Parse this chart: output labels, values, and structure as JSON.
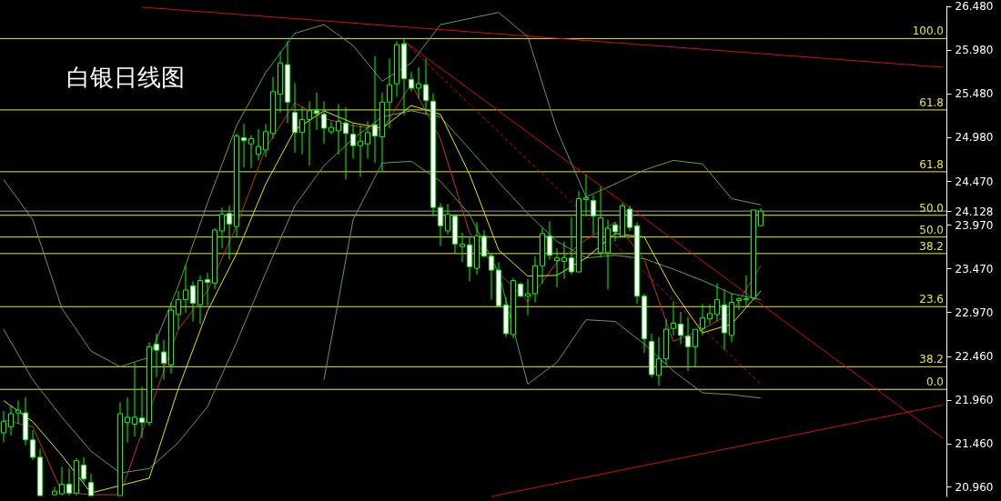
{
  "chart_data": {
    "type": "candlestick",
    "title": "白银日线图",
    "color": "#00ff00",
    "categories": [
      null,
      null,
      null,
      null,
      null,
      null,
      null,
      null,
      null,
      null,
      null,
      null,
      null,
      null,
      null,
      null,
      null,
      null,
      null,
      null,
      null,
      null,
      null,
      null,
      null,
      null,
      null,
      null,
      null,
      null,
      null,
      null,
      null,
      null,
      null,
      null,
      null,
      null,
      null,
      null,
      null,
      null,
      null,
      null,
      null,
      null,
      null,
      null,
      null,
      null,
      null,
      null,
      null,
      null,
      null,
      null,
      null,
      null,
      null,
      null,
      null,
      null,
      null,
      null,
      null,
      null,
      null,
      null,
      null,
      null,
      null,
      null,
      null,
      null,
      null,
      null,
      null,
      null,
      null,
      null,
      null,
      null,
      null,
      null,
      null,
      null,
      null,
      null,
      null,
      null,
      null,
      null,
      null,
      null,
      null,
      null,
      null,
      null,
      null,
      null,
      null,
      null,
      null,
      null,
      null,
      null,
      null,
      null,
      null,
      null,
      null,
      null,
      null,
      null,
      null,
      null,
      null,
      null,
      null,
      null,
      null,
      null,
      null,
      null,
      null,
      null,
      null,
      null,
      null,
      null
    ],
    "ohlc": [
      [
        21.58,
        21.83,
        21.47,
        21.71
      ],
      [
        21.65,
        21.9,
        21.55,
        21.8
      ],
      [
        21.81,
        21.95,
        21.68,
        21.84
      ],
      [
        21.81,
        21.99,
        21.44,
        21.5
      ],
      [
        21.5,
        21.61,
        21.27,
        21.3
      ],
      [
        21.3,
        21.4,
        20.86,
        20.86
      ],
      null,
      [
        20.87,
        20.96,
        20.86,
        20.91
      ],
      [
        20.88,
        21.19,
        20.86,
        20.99
      ],
      [
        20.99,
        21.17,
        20.86,
        20.89
      ],
      [
        20.89,
        21.29,
        20.86,
        21.26
      ],
      [
        21.21,
        21.3,
        21.01,
        21.05
      ],
      [
        21.01,
        21.11,
        20.86,
        20.86
      ],
      null,
      null,
      null,
      [
        20.86,
        21.93,
        20.86,
        21.8
      ],
      [
        21.7,
        21.99,
        21.47,
        21.76
      ],
      [
        21.68,
        22.39,
        21.54,
        21.76
      ],
      [
        21.75,
        22.11,
        21.52,
        21.7
      ],
      [
        21.7,
        22.62,
        21.66,
        22.57
      ],
      [
        22.6,
        22.72,
        22.22,
        22.53
      ],
      [
        22.51,
        22.65,
        22.19,
        22.38
      ],
      [
        22.36,
        23.08,
        22.26,
        22.99
      ],
      [
        22.94,
        23.21,
        22.77,
        23.11
      ],
      [
        23.11,
        23.5,
        22.96,
        23.22
      ],
      [
        23.27,
        23.32,
        22.86,
        23.07
      ],
      [
        23.05,
        23.39,
        22.83,
        23.33
      ],
      [
        23.34,
        23.42,
        23.04,
        23.31
      ],
      [
        23.3,
        23.93,
        23.23,
        23.91
      ],
      [
        23.9,
        24.17,
        23.7,
        24.09
      ],
      [
        24.1,
        24.19,
        23.57,
        23.98
      ],
      [
        23.95,
        25.02,
        23.83,
        24.99
      ],
      [
        24.97,
        25.13,
        24.63,
        24.94
      ],
      [
        24.9,
        25.0,
        24.62,
        24.96
      ],
      [
        24.78,
        25.07,
        24.71,
        24.87
      ],
      [
        24.83,
        25.13,
        24.75,
        25.04
      ],
      [
        25.02,
        25.67,
        24.96,
        25.5
      ],
      [
        25.47,
        25.96,
        25.26,
        25.83
      ],
      [
        25.81,
        26.08,
        25.14,
        25.38
      ],
      [
        25.26,
        25.6,
        24.8,
        25.03
      ],
      [
        25.03,
        25.32,
        24.78,
        25.18
      ],
      [
        25.18,
        25.39,
        24.65,
        25.28
      ],
      [
        25.28,
        25.49,
        25.06,
        25.25
      ],
      [
        25.24,
        25.39,
        24.9,
        25.08
      ],
      [
        25.04,
        25.16,
        25.01,
        25.09
      ],
      [
        25.05,
        25.36,
        24.78,
        25.16
      ],
      [
        25.14,
        25.32,
        24.49,
        25.02
      ],
      [
        25.01,
        25.13,
        24.73,
        24.88
      ],
      [
        24.88,
        25.11,
        24.52,
        24.93
      ],
      [
        24.9,
        25.16,
        24.73,
        25.03
      ],
      [
        25.12,
        25.91,
        24.68,
        24.99
      ],
      [
        24.98,
        25.49,
        24.58,
        25.38
      ],
      [
        25.38,
        25.88,
        25.08,
        25.58
      ],
      [
        25.59,
        26.08,
        25.44,
        26.04
      ],
      [
        26.05,
        26.11,
        25.23,
        25.65
      ],
      [
        25.64,
        25.73,
        25.5,
        25.54
      ],
      [
        25.54,
        25.78,
        25.42,
        25.59
      ],
      [
        25.58,
        25.88,
        25.23,
        25.4
      ],
      [
        25.39,
        25.48,
        24.07,
        24.17
      ],
      [
        24.17,
        24.22,
        23.73,
        23.96
      ],
      [
        23.9,
        24.21,
        23.86,
        24.09
      ],
      [
        24.07,
        24.09,
        23.64,
        23.75
      ],
      [
        23.72,
        23.88,
        23.54,
        23.75
      ],
      [
        23.74,
        23.83,
        23.32,
        23.49
      ],
      [
        23.47,
        24.0,
        23.4,
        23.84
      ],
      [
        23.84,
        23.91,
        23.6,
        23.61
      ],
      [
        23.61,
        23.64,
        23.11,
        23.45
      ],
      [
        23.45,
        23.54,
        23.03,
        23.04
      ],
      [
        23.05,
        23.14,
        22.68,
        22.72
      ],
      [
        22.71,
        23.36,
        22.67,
        23.33
      ],
      [
        23.29,
        23.31,
        23.14,
        23.15
      ],
      [
        23.15,
        23.35,
        22.93,
        23.18
      ],
      [
        23.18,
        23.61,
        23.08,
        23.5
      ],
      [
        23.5,
        23.93,
        23.29,
        23.87
      ],
      [
        23.84,
        24.01,
        23.57,
        23.62
      ],
      [
        23.56,
        23.7,
        23.25,
        23.59
      ],
      [
        23.55,
        23.78,
        23.35,
        23.59
      ],
      [
        23.59,
        24.06,
        23.4,
        23.43
      ],
      [
        23.43,
        24.36,
        23.42,
        24.27
      ],
      [
        24.26,
        24.55,
        24.07,
        24.28
      ],
      [
        24.25,
        24.31,
        23.86,
        24.07
      ],
      [
        23.65,
        24.41,
        23.6,
        24.05
      ],
      [
        23.65,
        24.03,
        23.23,
        23.93
      ],
      [
        23.97,
        24.0,
        23.78,
        23.89
      ],
      [
        23.84,
        24.22,
        23.83,
        24.19
      ],
      [
        24.15,
        24.19,
        23.9,
        23.94
      ],
      [
        23.96,
        24.0,
        23.06,
        23.15
      ],
      [
        23.15,
        23.18,
        22.5,
        22.66
      ],
      [
        22.63,
        22.72,
        22.22,
        22.25
      ],
      [
        22.24,
        22.68,
        22.12,
        22.43
      ],
      [
        22.43,
        22.89,
        22.36,
        22.77
      ],
      [
        22.78,
        23.09,
        22.7,
        22.84
      ],
      [
        22.83,
        22.97,
        22.6,
        22.7
      ],
      [
        22.69,
        22.91,
        22.29,
        22.57
      ],
      [
        22.57,
        22.77,
        22.34,
        22.77
      ],
      [
        22.78,
        23.06,
        22.7,
        22.9
      ],
      [
        22.89,
        23.06,
        22.83,
        22.95
      ],
      [
        22.94,
        23.3,
        22.86,
        23.11
      ],
      [
        23.05,
        23.23,
        22.53,
        22.73
      ],
      [
        22.7,
        23.18,
        22.62,
        23.08
      ],
      [
        23.1,
        23.14,
        22.99,
        23.12
      ],
      [
        23.11,
        23.39,
        23.03,
        23.12
      ],
      [
        23.13,
        24.14,
        23.11,
        24.14
      ],
      [
        23.96,
        24.16,
        23.96,
        24.128
      ],
      null,
      null,
      null,
      null,
      null,
      null,
      null,
      null,
      null,
      null,
      null,
      null,
      null,
      null,
      null,
      null,
      null,
      null,
      null,
      null,
      null,
      null,
      null,
      null,
      null
    ],
    "series": [
      {
        "type": "line",
        "color": "#5aa05a",
        "values": [
          24.49,
          null,
          null,
          null,
          24.03,
          null,
          null,
          null,
          23.01,
          null,
          null,
          null,
          22.52,
          null,
          null,
          null,
          22.34,
          null,
          null,
          null,
          22.45,
          null,
          null,
          null,
          23.27,
          null,
          null,
          null,
          24.22,
          null,
          null,
          null,
          25.11,
          null,
          null,
          null,
          25.72,
          null,
          null,
          null,
          26.17,
          null,
          null,
          null,
          26.27,
          null,
          null,
          null,
          26.03,
          null,
          null,
          null,
          25.62,
          null,
          null,
          null,
          25.83,
          null,
          null,
          null,
          26.27,
          null,
          null,
          null,
          26.34,
          null,
          null,
          null,
          26.41,
          null,
          null,
          null,
          26.13,
          null,
          null,
          null,
          25.06,
          null,
          null,
          null,
          24.29,
          null,
          null,
          null,
          24.44,
          null,
          null,
          null,
          24.6,
          null,
          null,
          null,
          24.71,
          null,
          null,
          null,
          24.67,
          null,
          null,
          null,
          24.27,
          null,
          null,
          null,
          24.2,
          null,
          null,
          null,
          null,
          null,
          null,
          null,
          null,
          null,
          null,
          null,
          null,
          null,
          null,
          null,
          null,
          null,
          null,
          null,
          null,
          null,
          null,
          null,
          null,
          null
        ]
      },
      {
        "type": "line",
        "color": "#5aa05a",
        "values": [
          22.77,
          null,
          null,
          null,
          22.19,
          null,
          null,
          null,
          21.76,
          null,
          null,
          null,
          21.37,
          null,
          null,
          null,
          21.12,
          null,
          null,
          null,
          21.17,
          null,
          null,
          null,
          21.47,
          null,
          null,
          null,
          21.88,
          null,
          null,
          null,
          22.62,
          null,
          null,
          null,
          23.42,
          null,
          null,
          null,
          24.19,
          null,
          null,
          null,
          24.65,
          null,
          null,
          null,
          24.96,
          null,
          null,
          null,
          25.21,
          null,
          null,
          null,
          25.28,
          null,
          null,
          null,
          25.21,
          null,
          null,
          null,
          24.84,
          null,
          null,
          null,
          24.46,
          null,
          null,
          null,
          24.1,
          null,
          null,
          null,
          23.78,
          null,
          null,
          null,
          23.59,
          null,
          null,
          null,
          23.62,
          null,
          null,
          null,
          23.58,
          null,
          null,
          null,
          23.46,
          null,
          null,
          null,
          23.33,
          null,
          null,
          null,
          23.18,
          null,
          null,
          null,
          23.11,
          null,
          null,
          null,
          null,
          null,
          null,
          null,
          null,
          null,
          null,
          null,
          null,
          null,
          null,
          null,
          null,
          null,
          null,
          null,
          null,
          null,
          null,
          null,
          null,
          null
        ]
      },
      {
        "type": "line",
        "color": "#5aa05a",
        "values": [
          null,
          null,
          null,
          null,
          null,
          null,
          null,
          null,
          null,
          null,
          null,
          null,
          null,
          null,
          null,
          null,
          null,
          null,
          null,
          null,
          null,
          null,
          null,
          null,
          null,
          null,
          null,
          null,
          null,
          null,
          null,
          null,
          null,
          null,
          null,
          null,
          null,
          null,
          null,
          null,
          null,
          null,
          null,
          null,
          22.19,
          null,
          null,
          null,
          24.03,
          null,
          null,
          null,
          24.68,
          null,
          null,
          null,
          24.7,
          null,
          null,
          null,
          24.47,
          null,
          null,
          null,
          24.09,
          null,
          null,
          null,
          23.42,
          null,
          null,
          null,
          22.14,
          null,
          null,
          null,
          22.39,
          null,
          null,
          null,
          22.88,
          null,
          null,
          null,
          22.86,
          null,
          null,
          null,
          22.6,
          null,
          null,
          null,
          22.29,
          null,
          null,
          null,
          22.04,
          null,
          null,
          null,
          22.02,
          null,
          null,
          null,
          21.98,
          null,
          null,
          null,
          null,
          null,
          null,
          null,
          null,
          null,
          null,
          null,
          null,
          null,
          null,
          null,
          null,
          null,
          null,
          null,
          null,
          null,
          null,
          null,
          null,
          null
        ]
      },
      {
        "type": "line",
        "color": "#c83232",
        "values": [
          21.73,
          null,
          null,
          null,
          21.65,
          null,
          null,
          null,
          20.9,
          null,
          null,
          null,
          20.87,
          null,
          null,
          null,
          20.87,
          null,
          null,
          null,
          null,
          null,
          null,
          null,
          22.77,
          null,
          null,
          null,
          23.21,
          null,
          null,
          null,
          23.96,
          null,
          null,
          null,
          24.85,
          null,
          null,
          null,
          25.37,
          null,
          null,
          null,
          25.19,
          null,
          null,
          null,
          25.11,
          null,
          null,
          null,
          25.06,
          null,
          null,
          null,
          25.59,
          null,
          null,
          null,
          24.96,
          null,
          null,
          null,
          23.88,
          null,
          null,
          null,
          23.42,
          null,
          null,
          null,
          23.09,
          null,
          null,
          null,
          23.54,
          null,
          null,
          null,
          23.8,
          null,
          null,
          null,
          24.0,
          null,
          null,
          null,
          23.57,
          null,
          null,
          null,
          22.63,
          null,
          null,
          null,
          22.77,
          null,
          null,
          null,
          22.96,
          null,
          null,
          null,
          23.5,
          null,
          null,
          null,
          null,
          null,
          null,
          null,
          null,
          null,
          null,
          null,
          null,
          null,
          null,
          null,
          null,
          null,
          null,
          null,
          null,
          null,
          null,
          null,
          null,
          null
        ]
      },
      {
        "type": "line",
        "color": "#e6e600",
        "values": [
          21.95,
          null,
          null,
          null,
          21.71,
          null,
          null,
          null,
          21.32,
          null,
          null,
          null,
          20.89,
          null,
          null,
          null,
          null,
          null,
          null,
          null,
          21.06,
          null,
          null,
          null,
          22.09,
          null,
          null,
          null,
          22.98,
          null,
          null,
          null,
          23.64,
          null,
          null,
          null,
          24.44,
          null,
          null,
          null,
          25.06,
          null,
          null,
          null,
          25.28,
          null,
          null,
          null,
          25.14,
          null,
          null,
          null,
          25.08,
          null,
          null,
          null,
          25.34,
          null,
          null,
          null,
          25.24,
          null,
          null,
          null,
          24.55,
          null,
          null,
          null,
          23.68,
          null,
          null,
          null,
          23.38,
          null,
          null,
          null,
          23.39,
          null,
          null,
          null,
          23.59,
          null,
          null,
          null,
          23.87,
          null,
          null,
          null,
          23.83,
          null,
          null,
          null,
          23.21,
          null,
          null,
          null,
          22.73,
          null,
          null,
          null,
          22.83,
          null,
          null,
          null,
          23.21,
          null,
          null,
          null,
          null,
          null,
          null,
          null,
          null,
          null,
          null,
          null,
          null,
          null,
          null,
          null,
          null,
          null,
          null,
          null,
          null,
          null,
          null,
          null,
          null,
          null
        ]
      },
      {
        "type": "line",
        "color": "#d01010",
        "values": [
          null,
          null,
          null,
          null,
          null,
          null,
          null,
          null,
          null,
          null,
          null,
          null,
          null,
          null,
          null,
          null,
          null,
          null,
          null,
          26.47,
          null,
          null,
          null,
          null,
          null,
          null,
          null,
          null,
          null,
          null,
          null,
          null,
          null,
          null,
          null,
          null,
          null,
          null,
          null,
          null,
          null,
          null,
          null,
          null,
          null,
          null,
          null,
          null,
          null,
          null,
          null,
          null,
          null,
          null,
          null,
          null,
          null,
          null,
          null,
          null,
          null,
          null,
          null,
          null,
          null,
          null,
          null,
          null,
          null,
          null,
          null,
          null,
          null,
          null,
          null,
          null,
          null,
          null,
          null,
          null,
          null,
          null,
          null,
          null,
          null,
          null,
          null,
          null,
          null,
          null,
          null,
          null,
          null,
          null,
          null,
          null,
          null,
          null,
          null,
          null,
          null,
          null,
          null,
          null,
          null,
          null,
          null,
          null,
          null,
          null,
          null,
          null,
          null,
          null,
          null,
          null,
          null,
          null,
          null,
          null,
          null,
          null,
          null,
          null,
          null,
          null,
          null,
          null,
          null,
          25.78
        ]
      },
      {
        "type": "line",
        "color": "#d01010",
        "values": [
          null,
          null,
          null,
          null,
          null,
          null,
          null,
          null,
          null,
          null,
          null,
          null,
          null,
          null,
          null,
          null,
          null,
          null,
          null,
          null,
          null,
          null,
          null,
          null,
          null,
          null,
          null,
          null,
          null,
          null,
          null,
          null,
          null,
          null,
          null,
          null,
          null,
          null,
          null,
          null,
          null,
          null,
          null,
          null,
          null,
          null,
          null,
          null,
          null,
          null,
          null,
          null,
          null,
          null,
          null,
          26.08,
          null,
          null,
          null,
          null,
          null,
          null,
          null,
          null,
          null,
          null,
          null,
          null,
          null,
          null,
          null,
          null,
          null,
          null,
          null,
          null,
          null,
          null,
          null,
          null,
          null,
          null,
          null,
          null,
          null,
          null,
          null,
          null,
          null,
          null,
          null,
          null,
          null,
          null,
          null,
          null,
          null,
          null,
          null,
          null,
          null,
          null,
          null,
          null,
          null,
          null,
          null,
          null,
          null,
          null,
          null,
          null,
          null,
          null,
          null,
          null,
          null,
          null,
          null,
          null,
          null,
          null,
          null,
          null,
          null,
          null,
          null,
          null,
          null,
          21.52
        ]
      },
      {
        "type": "line",
        "color": "#d01010",
        "values": [
          null,
          null,
          null,
          null,
          null,
          null,
          null,
          null,
          null,
          null,
          null,
          null,
          null,
          null,
          null,
          null,
          null,
          null,
          null,
          null,
          null,
          null,
          null,
          null,
          null,
          null,
          null,
          null,
          null,
          null,
          null,
          null,
          null,
          null,
          null,
          null,
          null,
          null,
          null,
          null,
          null,
          null,
          null,
          null,
          null,
          null,
          null,
          null,
          null,
          null,
          null,
          null,
          null,
          null,
          null,
          null,
          null,
          null,
          null,
          null,
          null,
          null,
          null,
          null,
          null,
          null,
          null,
          20.85,
          null,
          null,
          null,
          null,
          null,
          null,
          null,
          null,
          null,
          null,
          null,
          null,
          null,
          null,
          null,
          null,
          null,
          null,
          null,
          null,
          null,
          null,
          null,
          null,
          null,
          null,
          null,
          null,
          null,
          null,
          null,
          null,
          null,
          null,
          null,
          null,
          null,
          null,
          null,
          null,
          null,
          null,
          null,
          null,
          null,
          null,
          null,
          null,
          null,
          null,
          null,
          null,
          null,
          null,
          null,
          null,
          null,
          null,
          null,
          null,
          null,
          21.9
        ]
      },
      {
        "type": "line",
        "color": "#d01010",
        "line_style": "dashed",
        "values": [
          null,
          null,
          null,
          null,
          null,
          null,
          null,
          null,
          null,
          null,
          null,
          null,
          null,
          null,
          null,
          null,
          null,
          null,
          null,
          null,
          null,
          null,
          null,
          null,
          null,
          null,
          null,
          null,
          null,
          null,
          null,
          null,
          null,
          null,
          null,
          null,
          null,
          null,
          null,
          null,
          null,
          null,
          null,
          null,
          null,
          null,
          null,
          null,
          null,
          null,
          null,
          null,
          null,
          null,
          null,
          26.08,
          null,
          null,
          null,
          null,
          null,
          null,
          null,
          null,
          null,
          null,
          null,
          null,
          null,
          null,
          null,
          null,
          null,
          null,
          null,
          null,
          null,
          null,
          null,
          null,
          null,
          null,
          null,
          null,
          null,
          null,
          null,
          null,
          null,
          null,
          null,
          null,
          null,
          null,
          null,
          null,
          null,
          null,
          null,
          null,
          null,
          null,
          null,
          null,
          22.14,
          null,
          null,
          null,
          null,
          null,
          null,
          null,
          null,
          null,
          null,
          null,
          null,
          null,
          null,
          null,
          null,
          null,
          null,
          null,
          null,
          null,
          null,
          null,
          null,
          null
        ]
      }
    ],
    "ylim": [
      20.85,
      26.49
    ],
    "yticks": [
      {
        "value": 20.96,
        "label": "20.960"
      },
      {
        "value": 21.46,
        "label": "21.460"
      },
      {
        "value": 21.96,
        "label": "21.960"
      },
      {
        "value": 22.46,
        "label": "22.460"
      },
      {
        "value": 22.97,
        "label": "22.970"
      },
      {
        "value": 23.47,
        "label": "23.470"
      },
      {
        "value": 23.97,
        "label": "23.970"
      },
      {
        "value": 24.128,
        "label": "24.128"
      },
      {
        "value": 24.47,
        "label": "24.470"
      },
      {
        "value": 24.98,
        "label": "24.980"
      },
      {
        "value": 25.48,
        "label": "25.480"
      },
      {
        "value": 25.98,
        "label": "25.980"
      },
      {
        "value": 26.48,
        "label": "26.480"
      }
    ],
    "ref_lines": [
      {
        "axis": "y",
        "value": 26.11,
        "color": "#e6e64c"
      },
      {
        "axis": "y",
        "value": 25.29,
        "color": "#e6e64c"
      },
      {
        "axis": "y",
        "value": 24.58,
        "color": "#e6e64c"
      },
      {
        "axis": "y",
        "value": 24.08,
        "color": "#e6e64c"
      },
      {
        "axis": "y",
        "value": 23.83,
        "color": "#e6e64c"
      },
      {
        "axis": "y",
        "value": 23.64,
        "color": "#e6e64c"
      },
      {
        "axis": "y",
        "value": 23.03,
        "color": "#e6e64c"
      },
      {
        "axis": "y",
        "value": 22.34,
        "color": "#e6e64c"
      },
      {
        "axis": "y",
        "value": 22.08,
        "color": "#e6e64c"
      },
      {
        "axis": "y",
        "value": 24.128,
        "color": "#a0a0a0"
      }
    ],
    "annotations": [
      {
        "text": "100.0",
        "y": 26.11
      },
      {
        "text": "61.8",
        "y": 25.29
      },
      {
        "text": "61.8",
        "y": 24.58
      },
      {
        "text": "50.0",
        "y": 24.08
      },
      {
        "text": "50.0",
        "y": 23.83
      },
      {
        "text": "38.2",
        "y": 23.64
      },
      {
        "text": "23.6",
        "y": 23.03
      },
      {
        "text": "38.2",
        "y": 22.34
      },
      {
        "text": "0.0",
        "y": 22.08
      }
    ]
  }
}
